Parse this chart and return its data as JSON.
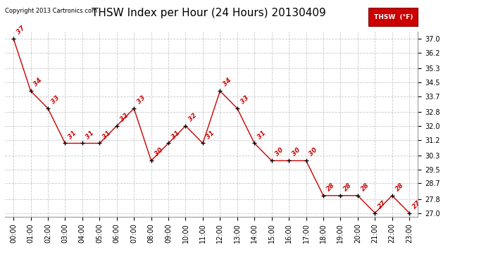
{
  "title": "THSW Index per Hour (24 Hours) 20130409",
  "copyright": "Copyright 2013 Cartronics.com",
  "legend_label": "THSW  (°F)",
  "hours": [
    0,
    1,
    2,
    3,
    4,
    5,
    6,
    7,
    8,
    9,
    10,
    11,
    12,
    13,
    14,
    15,
    16,
    17,
    18,
    19,
    20,
    21,
    22,
    23
  ],
  "values": [
    37.0,
    34.0,
    33.0,
    31.0,
    31.0,
    31.0,
    32.0,
    33.0,
    30.0,
    31.0,
    32.0,
    31.0,
    34.0,
    33.0,
    31.0,
    30.0,
    30.0,
    30.0,
    28.0,
    28.0,
    28.0,
    27.0,
    28.0,
    27.0
  ],
  "labels": [
    "37",
    "34",
    "33",
    "31",
    "31",
    "31",
    "32",
    "33",
    "30",
    "31",
    "32",
    "31",
    "34",
    "33",
    "31",
    "30",
    "30",
    "30",
    "28",
    "28",
    "28",
    "27",
    "28",
    "27"
  ],
  "yticks": [
    27.0,
    27.8,
    28.7,
    29.5,
    30.3,
    31.2,
    32.0,
    32.8,
    33.7,
    34.5,
    35.3,
    36.2,
    37.0
  ],
  "xlabels": [
    "00:00",
    "01:00",
    "02:00",
    "03:00",
    "04:00",
    "05:00",
    "06:00",
    "07:00",
    "08:00",
    "09:00",
    "10:00",
    "11:00",
    "12:00",
    "13:00",
    "14:00",
    "15:00",
    "16:00",
    "17:00",
    "18:00",
    "19:00",
    "20:00",
    "21:00",
    "22:00",
    "23:00"
  ],
  "line_color": "#CC0000",
  "marker_color": "#000000",
  "label_color": "#CC0000",
  "bg_color": "#FFFFFF",
  "grid_color": "#BBBBBB",
  "title_fontsize": 11,
  "label_fontsize": 6.5,
  "tick_fontsize": 7,
  "legend_bg": "#CC0000",
  "legend_text_color": "#FFFFFF",
  "ymin": 26.8,
  "ymax": 37.4
}
